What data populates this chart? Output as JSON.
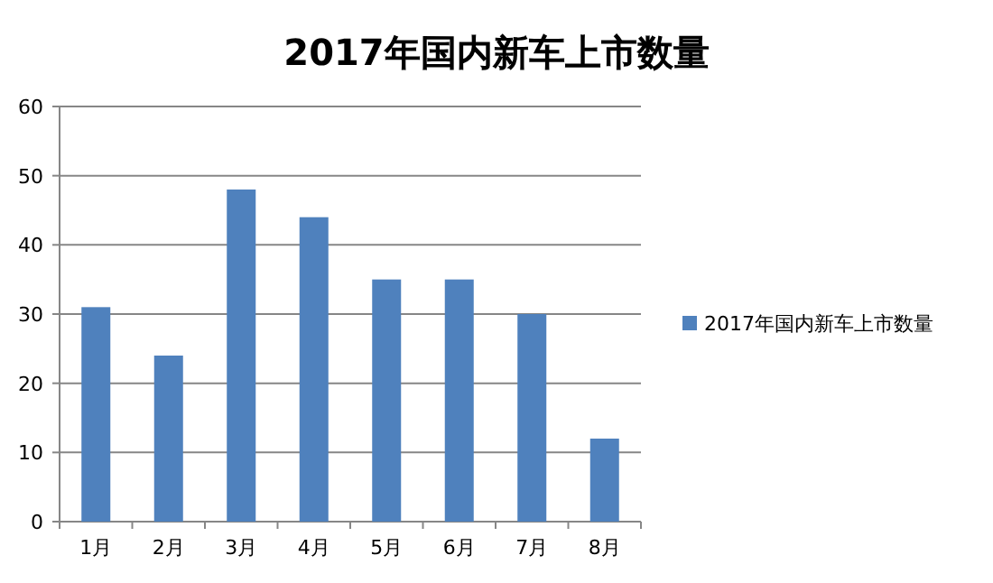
{
  "chart_data": {
    "type": "bar",
    "title": "2017年国内新车上市数量",
    "categories": [
      "1月",
      "2月",
      "3月",
      "4月",
      "5月",
      "6月",
      "7月",
      "8月"
    ],
    "series": [
      {
        "name": "2017年国内新车上市数量",
        "color": "#4f81bd",
        "values": [
          31,
          24,
          48,
          44,
          35,
          35,
          30,
          12
        ]
      }
    ],
    "ylim": [
      0,
      60
    ],
    "yticks": [
      0,
      10,
      20,
      30,
      40,
      50,
      60
    ],
    "grid": "y",
    "legend": "right"
  }
}
